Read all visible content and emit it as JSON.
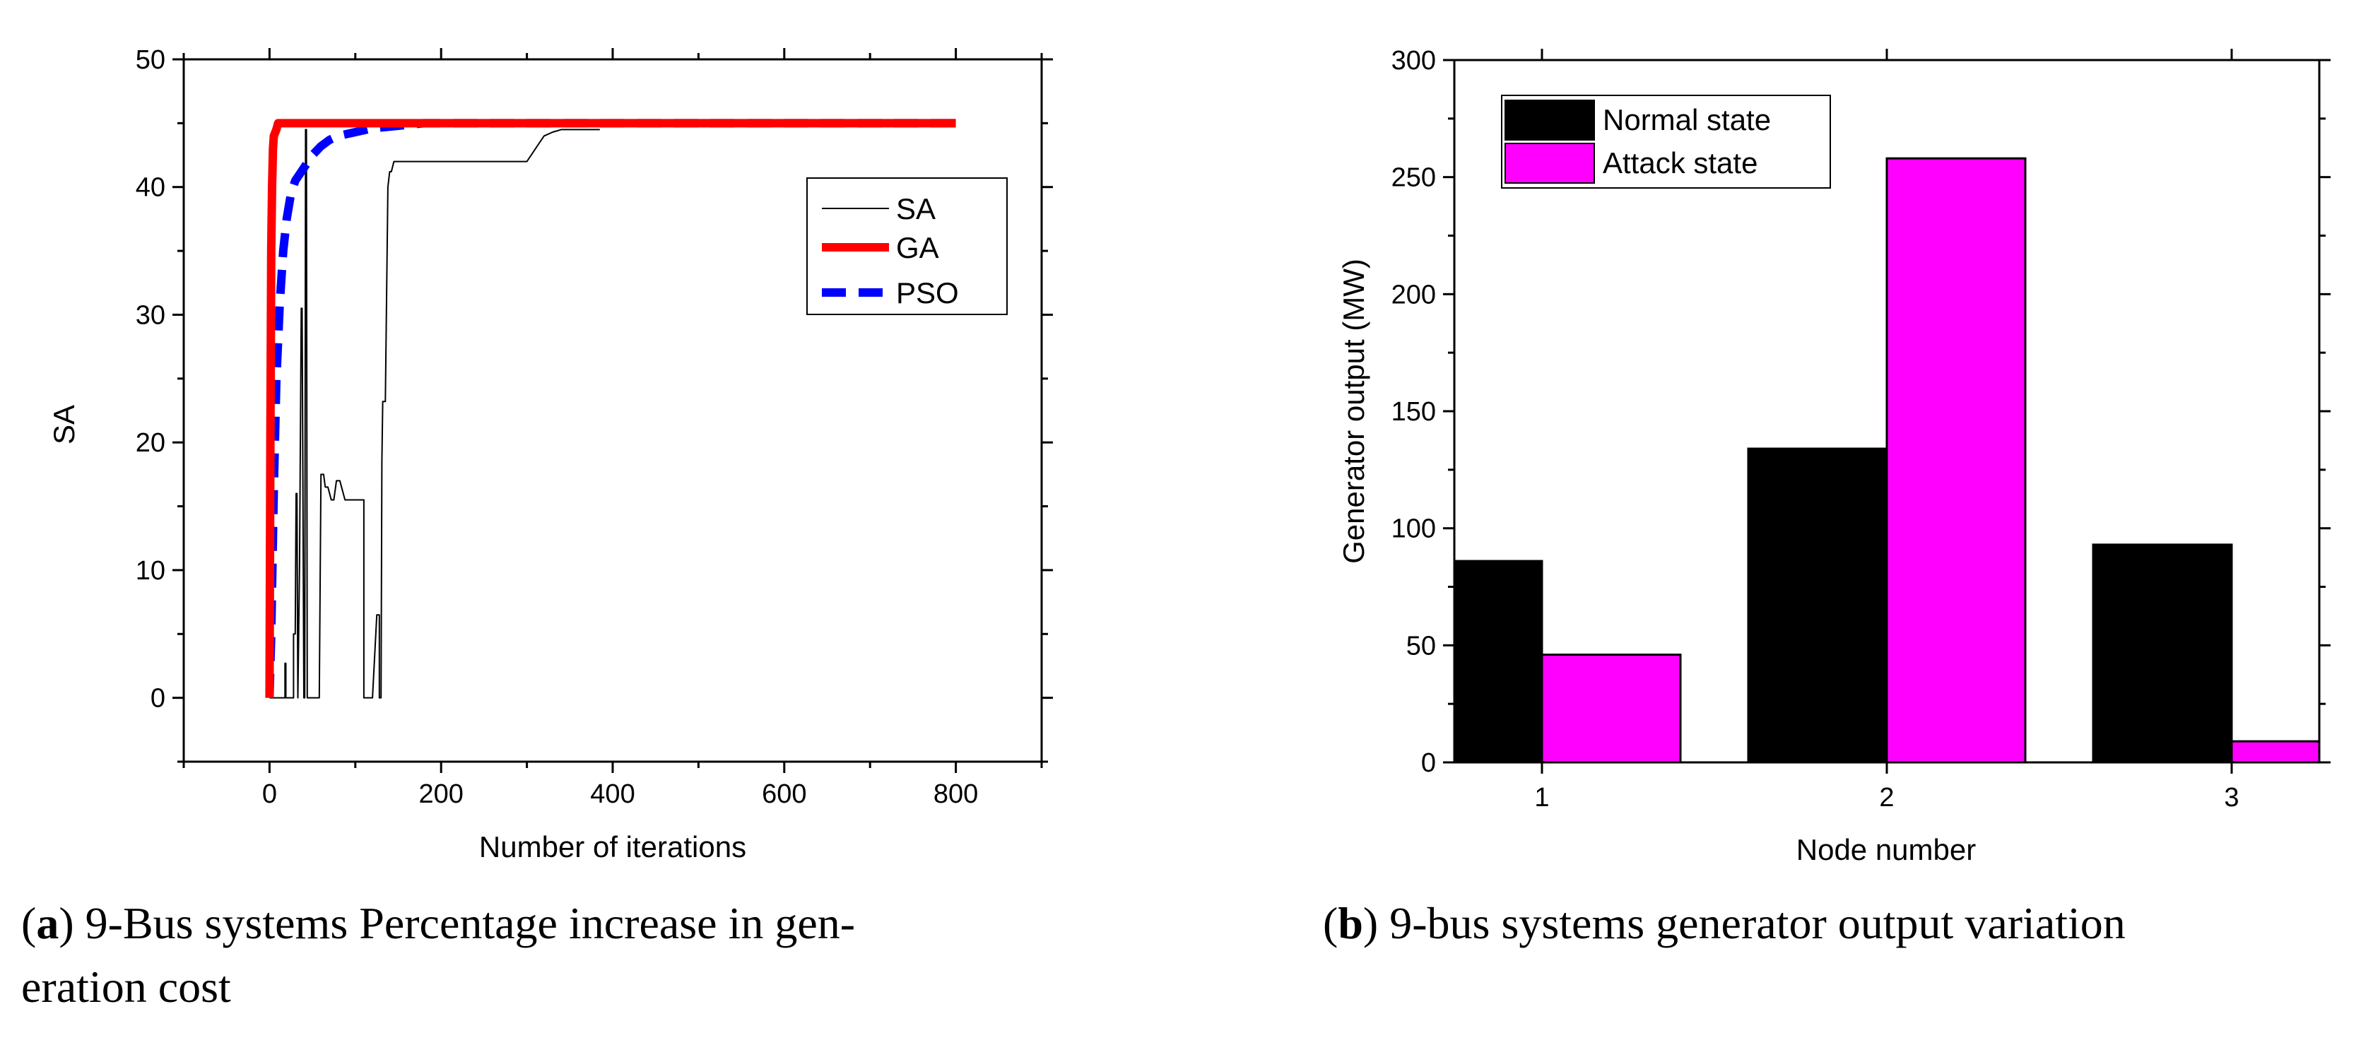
{
  "colors": {
    "sa": "#000000",
    "ga": "#ff0000",
    "pso": "#0000ff",
    "normal": "#000000",
    "attack": "#ff00ff"
  },
  "captions": {
    "a": {
      "label": "a",
      "text": " 9-Bus systems Percentage increase in gen-",
      "text2": "eration cost"
    },
    "b": {
      "label": "b",
      "text": " 9-bus systems generator output variation"
    }
  },
  "chart_data": [
    {
      "type": "line",
      "title": "",
      "xlabel": "Number of iterations",
      "ylabel": "SA",
      "xlim": [
        -100,
        900
      ],
      "ylim": [
        -5,
        50
      ],
      "xticks": [
        0,
        200,
        400,
        600,
        800
      ],
      "yticks": [
        0,
        10,
        20,
        30,
        40,
        50
      ],
      "legend_position": "center-right",
      "series": [
        {
          "name": "SA",
          "style": "thin-solid",
          "x": [
            0,
            18,
            18,
            19,
            19,
            28,
            28,
            30,
            31,
            32,
            33,
            35,
            37,
            38,
            40,
            41,
            42,
            43,
            44,
            45,
            55,
            58,
            60,
            63,
            65,
            68,
            72,
            75,
            78,
            82,
            88,
            92,
            95,
            100,
            105,
            110,
            110,
            115,
            120,
            125,
            128,
            128,
            130,
            131,
            132,
            133,
            135,
            138,
            140,
            142,
            145,
            150,
            200,
            300,
            310,
            310,
            320,
            320,
            330,
            340,
            380,
            385
          ],
          "y": [
            0,
            0,
            2.7,
            2.7,
            0,
            0,
            5,
            5,
            16,
            16,
            0,
            10.5,
            30.5,
            30.5,
            0,
            0,
            44.5,
            44.5,
            0,
            0,
            0,
            0,
            17.5,
            17.5,
            16.5,
            16.5,
            15.5,
            15.5,
            17,
            17,
            15.5,
            15.5,
            15.5,
            15.5,
            15.5,
            15.5,
            0,
            0,
            0,
            6.5,
            6.5,
            0,
            0,
            18.5,
            23.2,
            23.2,
            23.2,
            40,
            41.2,
            41.2,
            42,
            42,
            42,
            42,
            43,
            43,
            44,
            44,
            44.3,
            44.5,
            44.5,
            44.5
          ]
        },
        {
          "name": "GA",
          "style": "thick-solid",
          "x": [
            0,
            1,
            2,
            3,
            4,
            5,
            8,
            10,
            15,
            20,
            50,
            100,
            200,
            400,
            600,
            800
          ],
          "y": [
            0,
            20,
            35,
            40,
            43,
            44,
            44.5,
            45,
            45,
            45,
            45,
            45,
            45,
            45,
            45,
            45
          ]
        },
        {
          "name": "PSO",
          "style": "thick-dashed",
          "x": [
            0,
            2,
            5,
            8,
            12,
            16,
            20,
            25,
            30,
            40,
            50,
            60,
            70,
            80,
            100,
            120,
            150,
            180,
            200,
            400,
            600,
            800
          ],
          "y": [
            0,
            5,
            16.5,
            25,
            31,
            35,
            37.5,
            39.5,
            40.5,
            41.5,
            42.5,
            43.2,
            43.7,
            44,
            44.3,
            44.6,
            44.8,
            45,
            45,
            45,
            45,
            45
          ]
        }
      ]
    },
    {
      "type": "bar",
      "title": "",
      "xlabel": "Node number",
      "ylabel": "Generator output (MW)",
      "categories": [
        "1",
        "2",
        "3"
      ],
      "ylim": [
        0,
        300
      ],
      "yticks": [
        0,
        50,
        100,
        150,
        200,
        250,
        300
      ],
      "legend_position": "top-left",
      "series": [
        {
          "name": "Normal state",
          "values": [
            86,
            134,
            93
          ]
        },
        {
          "name": "Attack state",
          "values": [
            46,
            258,
            9
          ]
        }
      ]
    }
  ]
}
